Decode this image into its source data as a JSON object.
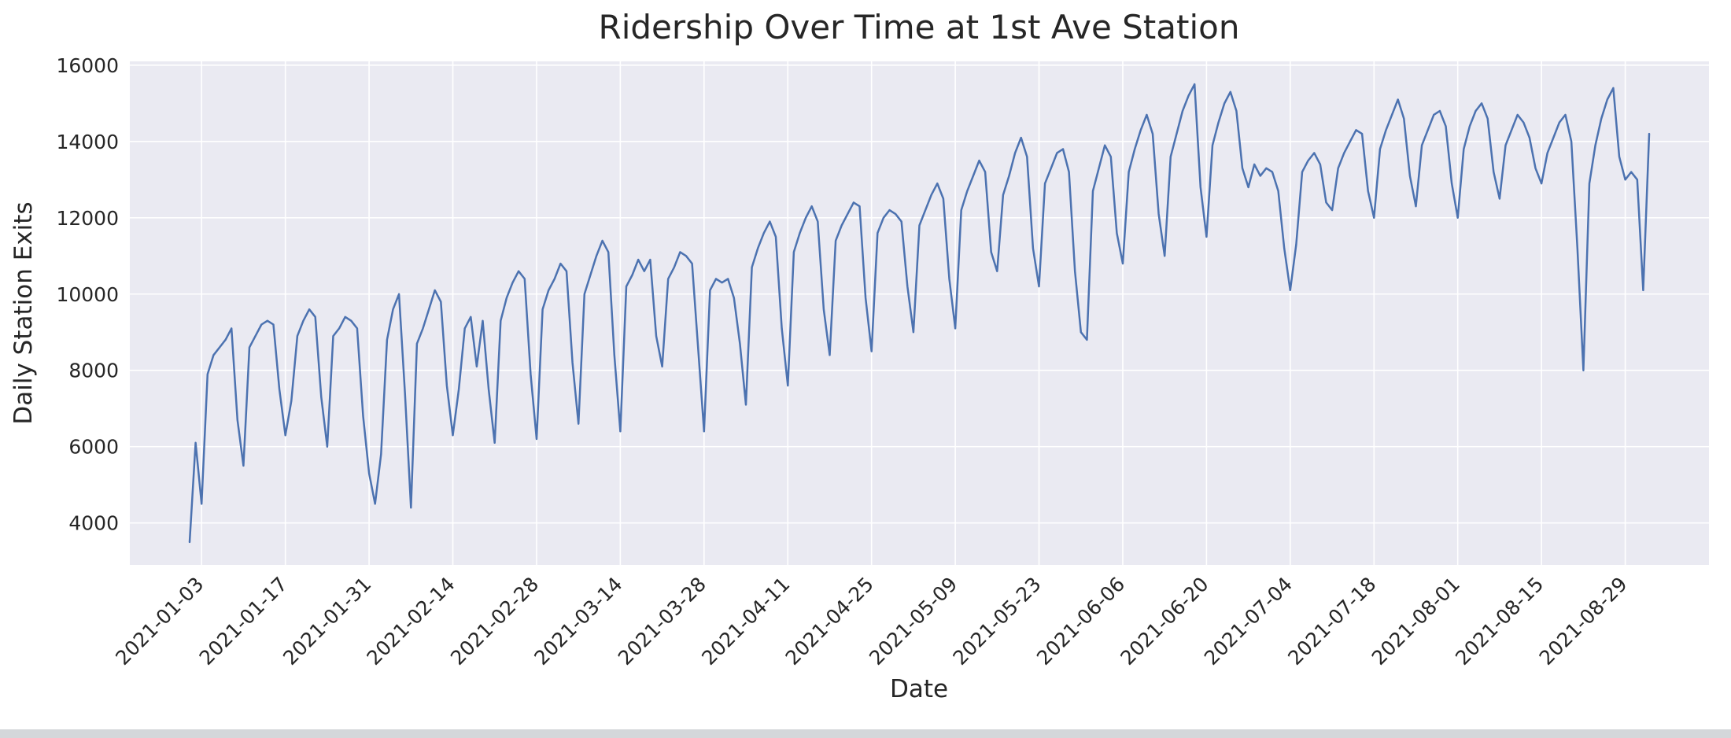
{
  "chart_data": {
    "type": "line",
    "title": "Ridership Over Time at 1st Ave Station",
    "xlabel": "Date",
    "ylabel": "Daily Station Exits",
    "frequency": "daily",
    "start_date": "2021-01-01",
    "x_tick_labels": [
      "2021-01-03",
      "2021-01-17",
      "2021-01-31",
      "2021-02-14",
      "2021-02-28",
      "2021-03-14",
      "2021-03-28",
      "2021-04-11",
      "2021-04-25",
      "2021-05-09",
      "2021-05-23",
      "2021-06-06",
      "2021-06-20",
      "2021-07-04",
      "2021-07-18",
      "2021-08-01",
      "2021-08-15",
      "2021-08-29"
    ],
    "y_ticks": [
      4000,
      6000,
      8000,
      10000,
      12000,
      14000,
      16000
    ],
    "ylim": [
      2900,
      16100
    ],
    "grid": true,
    "legend": false,
    "line_color": "#4c72b0",
    "plot_bg": "#eaeaf2",
    "grid_color": "#ffffff",
    "tick_label_color": "#262626",
    "values": [
      3500,
      6100,
      4500,
      7900,
      8400,
      8600,
      8800,
      9100,
      6700,
      5500,
      8600,
      8900,
      9200,
      9300,
      9200,
      7500,
      6300,
      7200,
      8900,
      9300,
      9600,
      9400,
      7300,
      6000,
      8900,
      9100,
      9400,
      9300,
      9100,
      6800,
      5300,
      4500,
      5800,
      8800,
      9600,
      10000,
      7400,
      4400,
      8700,
      9100,
      9600,
      10100,
      9800,
      7600,
      6300,
      7500,
      9100,
      9400,
      8100,
      9300,
      7500,
      6100,
      9300,
      9900,
      10300,
      10600,
      10400,
      7900,
      6200,
      9600,
      10100,
      10400,
      10800,
      10600,
      8200,
      6600,
      10000,
      10500,
      11000,
      11400,
      11100,
      8400,
      6400,
      10200,
      10500,
      10900,
      10600,
      10900,
      8900,
      8100,
      10400,
      10700,
      11100,
      11000,
      10800,
      8600,
      6400,
      10100,
      10400,
      10300,
      10400,
      9900,
      8700,
      7100,
      10700,
      11200,
      11600,
      11900,
      11500,
      9100,
      7600,
      11100,
      11600,
      12000,
      12300,
      11900,
      9600,
      8400,
      11400,
      11800,
      12100,
      12400,
      12300,
      9900,
      8500,
      11600,
      12000,
      12200,
      12100,
      11900,
      10200,
      9000,
      11800,
      12200,
      12600,
      12900,
      12500,
      10400,
      9100,
      12200,
      12700,
      13100,
      13500,
      13200,
      11100,
      10600,
      12600,
      13100,
      13700,
      14100,
      13600,
      11200,
      10200,
      12900,
      13300,
      13700,
      13800,
      13200,
      10600,
      9000,
      8800,
      12700,
      13300,
      13900,
      13600,
      11600,
      10800,
      13200,
      13800,
      14300,
      14700,
      14200,
      12100,
      11000,
      13600,
      14200,
      14800,
      15200,
      15500,
      12800,
      11500,
      13900,
      14500,
      15000,
      15300,
      14800,
      13300,
      12800,
      13400,
      13100,
      13300,
      13200,
      12700,
      11200,
      10100,
      11300,
      13200,
      13500,
      13700,
      13400,
      12400,
      12200,
      13300,
      13700,
      14000,
      14300,
      14200,
      12700,
      12000,
      13800,
      14300,
      14700,
      15100,
      14600,
      13100,
      12300,
      13900,
      14300,
      14700,
      14800,
      14400,
      12900,
      12000,
      13800,
      14400,
      14800,
      15000,
      14600,
      13200,
      12500,
      13900,
      14300,
      14700,
      14500,
      14100,
      13300,
      12900,
      13700,
      14100,
      14500,
      14700,
      14000,
      11200,
      8000,
      12900,
      13900,
      14600,
      15100,
      15400,
      13600,
      13000,
      13200,
      13000,
      10100,
      14200
    ]
  }
}
